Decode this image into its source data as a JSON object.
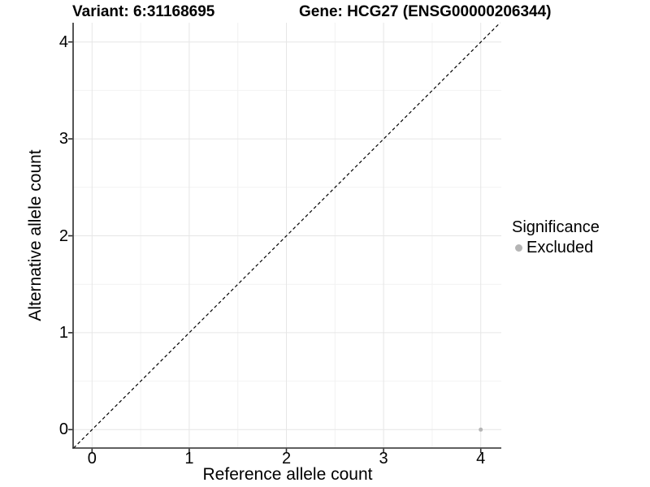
{
  "titles": {
    "variant": "Variant: 6:31168695",
    "gene": "Gene: HCG27 (ENSG00000206344)"
  },
  "axes": {
    "x": {
      "label": "Reference allele count",
      "ticks": [
        "0",
        "1",
        "2",
        "3",
        "4"
      ]
    },
    "y": {
      "label": "Alternative allele count",
      "ticks": [
        "0",
        "1",
        "2",
        "3",
        "4"
      ]
    }
  },
  "legend": {
    "title": "Significance",
    "items": [
      {
        "label": "Excluded",
        "color": "#b5b5b5"
      }
    ]
  },
  "colors": {
    "background": "#ffffff",
    "grid_major": "#e6e6e6",
    "grid_minor": "#f2f2f2",
    "axis_line": "#2b2b2b",
    "text": "#000000",
    "point_excluded": "#b5b5b5",
    "identity_line": "#000000"
  },
  "chart_data": {
    "type": "scatter",
    "title": "Variant: 6:31168695   Gene: HCG27 (ENSG00000206344)",
    "xlabel": "Reference allele count",
    "ylabel": "Alternative allele count",
    "xlim": [
      -0.2,
      4.2
    ],
    "ylim": [
      -0.2,
      4.2
    ],
    "x_ticks": [
      0,
      1,
      2,
      3,
      4
    ],
    "y_ticks": [
      0,
      1,
      2,
      3,
      4
    ],
    "grid": "major and minor gridlines, white panel",
    "legend_position": "right",
    "legend_title": "Significance",
    "series": [
      {
        "name": "Excluded",
        "color": "#b5b5b5",
        "marker": "circle",
        "points": [
          {
            "x": 4,
            "y": 0
          }
        ]
      }
    ],
    "annotations": [
      {
        "type": "identity_line",
        "equation": "y = x",
        "style": "dashed",
        "color": "#000000"
      }
    ]
  }
}
